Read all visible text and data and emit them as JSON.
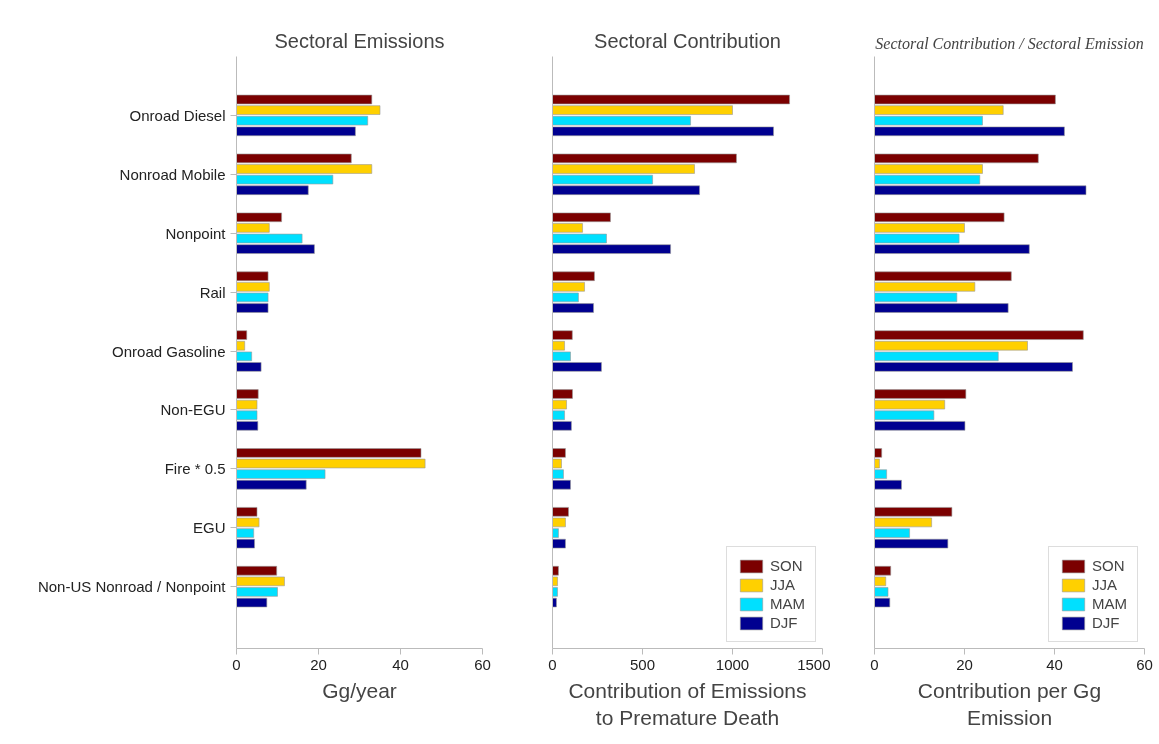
{
  "chart_data": [
    {
      "type": "bar",
      "orientation": "horizontal",
      "title": "Sectoral Emissions",
      "xlabel": "Gg/year",
      "categories": [
        "Onroad Diesel",
        "Nonroad Mobile",
        "Nonpoint",
        "Rail",
        "Onroad Gasoline",
        "Non-EGU",
        "Fire * 0.5",
        "EGU",
        "Non-US Nonroad / Nonpoint"
      ],
      "series": [
        {
          "color": "#7b0000",
          "values": [
            33,
            28,
            11,
            7.7,
            2.5,
            5.3,
            45,
            5,
            9.8
          ]
        },
        {
          "color": "#ffd000",
          "values": [
            35,
            33,
            8,
            8,
            2,
            5,
            46,
            5.5,
            11.7
          ]
        },
        {
          "color": "#00e0ff",
          "values": [
            32,
            23.5,
            16,
            7.7,
            3.7,
            5,
            21.6,
            4.2,
            10
          ]
        },
        {
          "color": "#000090",
          "values": [
            29,
            17.5,
            19,
            7.7,
            6,
            5.2,
            17,
            4.4,
            7.4
          ]
        }
      ],
      "xlim": [
        0,
        60
      ],
      "xticks": [
        0,
        20,
        40,
        60
      ],
      "grid": false
    },
    {
      "type": "bar",
      "orientation": "horizontal",
      "title": "Sectoral Contribution",
      "xlabel": "Contribution of Emissions to Premature Death",
      "categories": [
        null,
        null,
        null,
        null,
        null,
        null,
        null,
        null,
        null
      ],
      "series": [
        {
          "name": "SON",
          "color": "#7b0000",
          "values": [
            1317,
            1022,
            322,
            233,
            110,
            111,
            72,
            89,
            33
          ]
        },
        {
          "name": "JJA",
          "color": "#ffd000",
          "values": [
            1000,
            789,
            167,
            178,
            67,
            78,
            50,
            72,
            28
          ]
        },
        {
          "name": "MAM",
          "color": "#00e0ff",
          "values": [
            767,
            556,
            300,
            144,
            100,
            67,
            61,
            33,
            28
          ]
        },
        {
          "name": "DJF",
          "color": "#000090",
          "values": [
            1228,
            817,
            656,
            228,
            272,
            105,
            100,
            72,
            22
          ]
        }
      ],
      "xlim": [
        0,
        1500
      ],
      "xticks": [
        0,
        500,
        1000,
        1500
      ],
      "tick_labels": "x",
      "legend": "bottom right",
      "grid": false
    },
    {
      "type": "bar",
      "orientation": "horizontal",
      "title": "Sectoral Contribution / Sectoral Emission",
      "xlabel": "Contribution per Gg Emission",
      "categories": [
        null,
        null,
        null,
        null,
        null,
        null,
        null,
        null,
        null
      ],
      "series": [
        {
          "name": "SON",
          "color": "#7b0000",
          "values": [
            40.2,
            36.4,
            28.8,
            30.4,
            46.4,
            20.3,
            1.6,
            17.2,
            3.6
          ]
        },
        {
          "name": "JJA",
          "color": "#ffd000",
          "values": [
            28.6,
            24,
            20,
            22.3,
            34,
            15.6,
            1.1,
            12.7,
            2.5
          ]
        },
        {
          "name": "MAM",
          "color": "#00e0ff",
          "values": [
            24,
            23.4,
            18.8,
            18.3,
            27.5,
            13.2,
            2.7,
            7.8,
            3
          ]
        },
        {
          "name": "DJF",
          "color": "#000090",
          "values": [
            42.2,
            47,
            34.4,
            29.7,
            44,
            20.1,
            6,
            16.3,
            3.4
          ]
        }
      ],
      "xlim": [
        0,
        60
      ],
      "xticks": [
        0,
        20,
        40,
        60
      ],
      "tick_labels": "x",
      "legend": "bottom right",
      "grid": false
    }
  ]
}
